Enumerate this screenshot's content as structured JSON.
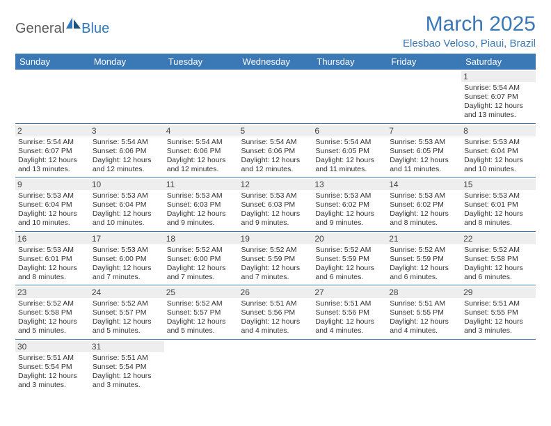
{
  "logo": {
    "part1": "General",
    "part2": "Blue"
  },
  "title": "March 2025",
  "location": "Elesbao Veloso, Piaui, Brazil",
  "colors": {
    "accent": "#3b78b6",
    "header_bg": "#3b78b6",
    "header_text": "#ffffff",
    "daynum_bg": "#eeeeee"
  },
  "weekdays": [
    "Sunday",
    "Monday",
    "Tuesday",
    "Wednesday",
    "Thursday",
    "Friday",
    "Saturday"
  ],
  "weeks": [
    [
      null,
      null,
      null,
      null,
      null,
      null,
      {
        "n": "1",
        "sr": "Sunrise: 5:54 AM",
        "ss": "Sunset: 6:07 PM",
        "dl": "Daylight: 12 hours and 13 minutes."
      }
    ],
    [
      {
        "n": "2",
        "sr": "Sunrise: 5:54 AM",
        "ss": "Sunset: 6:07 PM",
        "dl": "Daylight: 12 hours and 13 minutes."
      },
      {
        "n": "3",
        "sr": "Sunrise: 5:54 AM",
        "ss": "Sunset: 6:06 PM",
        "dl": "Daylight: 12 hours and 12 minutes."
      },
      {
        "n": "4",
        "sr": "Sunrise: 5:54 AM",
        "ss": "Sunset: 6:06 PM",
        "dl": "Daylight: 12 hours and 12 minutes."
      },
      {
        "n": "5",
        "sr": "Sunrise: 5:54 AM",
        "ss": "Sunset: 6:06 PM",
        "dl": "Daylight: 12 hours and 12 minutes."
      },
      {
        "n": "6",
        "sr": "Sunrise: 5:54 AM",
        "ss": "Sunset: 6:05 PM",
        "dl": "Daylight: 12 hours and 11 minutes."
      },
      {
        "n": "7",
        "sr": "Sunrise: 5:53 AM",
        "ss": "Sunset: 6:05 PM",
        "dl": "Daylight: 12 hours and 11 minutes."
      },
      {
        "n": "8",
        "sr": "Sunrise: 5:53 AM",
        "ss": "Sunset: 6:04 PM",
        "dl": "Daylight: 12 hours and 10 minutes."
      }
    ],
    [
      {
        "n": "9",
        "sr": "Sunrise: 5:53 AM",
        "ss": "Sunset: 6:04 PM",
        "dl": "Daylight: 12 hours and 10 minutes."
      },
      {
        "n": "10",
        "sr": "Sunrise: 5:53 AM",
        "ss": "Sunset: 6:04 PM",
        "dl": "Daylight: 12 hours and 10 minutes."
      },
      {
        "n": "11",
        "sr": "Sunrise: 5:53 AM",
        "ss": "Sunset: 6:03 PM",
        "dl": "Daylight: 12 hours and 9 minutes."
      },
      {
        "n": "12",
        "sr": "Sunrise: 5:53 AM",
        "ss": "Sunset: 6:03 PM",
        "dl": "Daylight: 12 hours and 9 minutes."
      },
      {
        "n": "13",
        "sr": "Sunrise: 5:53 AM",
        "ss": "Sunset: 6:02 PM",
        "dl": "Daylight: 12 hours and 9 minutes."
      },
      {
        "n": "14",
        "sr": "Sunrise: 5:53 AM",
        "ss": "Sunset: 6:02 PM",
        "dl": "Daylight: 12 hours and 8 minutes."
      },
      {
        "n": "15",
        "sr": "Sunrise: 5:53 AM",
        "ss": "Sunset: 6:01 PM",
        "dl": "Daylight: 12 hours and 8 minutes."
      }
    ],
    [
      {
        "n": "16",
        "sr": "Sunrise: 5:53 AM",
        "ss": "Sunset: 6:01 PM",
        "dl": "Daylight: 12 hours and 8 minutes."
      },
      {
        "n": "17",
        "sr": "Sunrise: 5:53 AM",
        "ss": "Sunset: 6:00 PM",
        "dl": "Daylight: 12 hours and 7 minutes."
      },
      {
        "n": "18",
        "sr": "Sunrise: 5:52 AM",
        "ss": "Sunset: 6:00 PM",
        "dl": "Daylight: 12 hours and 7 minutes."
      },
      {
        "n": "19",
        "sr": "Sunrise: 5:52 AM",
        "ss": "Sunset: 5:59 PM",
        "dl": "Daylight: 12 hours and 7 minutes."
      },
      {
        "n": "20",
        "sr": "Sunrise: 5:52 AM",
        "ss": "Sunset: 5:59 PM",
        "dl": "Daylight: 12 hours and 6 minutes."
      },
      {
        "n": "21",
        "sr": "Sunrise: 5:52 AM",
        "ss": "Sunset: 5:59 PM",
        "dl": "Daylight: 12 hours and 6 minutes."
      },
      {
        "n": "22",
        "sr": "Sunrise: 5:52 AM",
        "ss": "Sunset: 5:58 PM",
        "dl": "Daylight: 12 hours and 6 minutes."
      }
    ],
    [
      {
        "n": "23",
        "sr": "Sunrise: 5:52 AM",
        "ss": "Sunset: 5:58 PM",
        "dl": "Daylight: 12 hours and 5 minutes."
      },
      {
        "n": "24",
        "sr": "Sunrise: 5:52 AM",
        "ss": "Sunset: 5:57 PM",
        "dl": "Daylight: 12 hours and 5 minutes."
      },
      {
        "n": "25",
        "sr": "Sunrise: 5:52 AM",
        "ss": "Sunset: 5:57 PM",
        "dl": "Daylight: 12 hours and 5 minutes."
      },
      {
        "n": "26",
        "sr": "Sunrise: 5:51 AM",
        "ss": "Sunset: 5:56 PM",
        "dl": "Daylight: 12 hours and 4 minutes."
      },
      {
        "n": "27",
        "sr": "Sunrise: 5:51 AM",
        "ss": "Sunset: 5:56 PM",
        "dl": "Daylight: 12 hours and 4 minutes."
      },
      {
        "n": "28",
        "sr": "Sunrise: 5:51 AM",
        "ss": "Sunset: 5:55 PM",
        "dl": "Daylight: 12 hours and 4 minutes."
      },
      {
        "n": "29",
        "sr": "Sunrise: 5:51 AM",
        "ss": "Sunset: 5:55 PM",
        "dl": "Daylight: 12 hours and 3 minutes."
      }
    ],
    [
      {
        "n": "30",
        "sr": "Sunrise: 5:51 AM",
        "ss": "Sunset: 5:54 PM",
        "dl": "Daylight: 12 hours and 3 minutes."
      },
      {
        "n": "31",
        "sr": "Sunrise: 5:51 AM",
        "ss": "Sunset: 5:54 PM",
        "dl": "Daylight: 12 hours and 3 minutes."
      },
      null,
      null,
      null,
      null,
      null
    ]
  ]
}
